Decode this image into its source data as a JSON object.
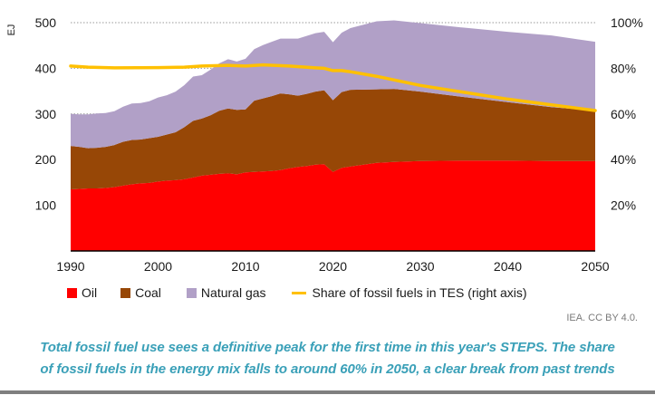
{
  "chart_data": {
    "type": "area",
    "stacked": true,
    "x": [
      1990,
      1991,
      1992,
      1993,
      1994,
      1995,
      1996,
      1997,
      1998,
      1999,
      2000,
      2001,
      2002,
      2003,
      2004,
      2005,
      2006,
      2007,
      2008,
      2009,
      2010,
      2011,
      2012,
      2013,
      2014,
      2015,
      2016,
      2017,
      2018,
      2019,
      2020,
      2021,
      2022,
      2025,
      2027,
      2030,
      2035,
      2040,
      2045,
      2050
    ],
    "series": [
      {
        "name": "Oil",
        "color": "#ff0000",
        "values": [
          135,
          136,
          137,
          137,
          138,
          140,
          143,
          146,
          148,
          149,
          152,
          154,
          155,
          157,
          161,
          165,
          167,
          169,
          170,
          168,
          172,
          173,
          174,
          175,
          177,
          181,
          184,
          186,
          189,
          190,
          173,
          182,
          185,
          193,
          195,
          197,
          198,
          198,
          197,
          197
        ]
      },
      {
        "name": "Coal",
        "color": "#974706",
        "values": [
          95,
          92,
          88,
          89,
          90,
          92,
          96,
          97,
          96,
          98,
          98,
          101,
          105,
          114,
          124,
          125,
          130,
          138,
          142,
          141,
          138,
          156,
          160,
          164,
          168,
          162,
          156,
          158,
          160,
          162,
          157,
          166,
          168,
          161,
          160,
          152,
          139,
          128,
          118,
          110
        ]
      },
      {
        "name": "Natural gas",
        "color": "#b1a0c7",
        "values": [
          70,
          71,
          74,
          75,
          74,
          74,
          77,
          80,
          80,
          81,
          86,
          86,
          89,
          92,
          97,
          95,
          100,
          104,
          108,
          106,
          111,
          113,
          117,
          119,
          120,
          122,
          125,
          127,
          128,
          128,
          127,
          130,
          135,
          149,
          150,
          150,
          152,
          154,
          157,
          151
        ]
      }
    ],
    "line_series": {
      "name": "Share of fossil fuels in TES (right axis)",
      "color": "#ffc000",
      "axis": "right",
      "x": [
        1990,
        1992,
        1995,
        2000,
        2003,
        2005,
        2008,
        2010,
        2012,
        2015,
        2018,
        2019,
        2020,
        2021,
        2022,
        2025,
        2030,
        2035,
        2040,
        2045,
        2050
      ],
      "values": [
        81.0,
        80.5,
        80.2,
        80.3,
        80.5,
        81.0,
        81.3,
        81.0,
        81.5,
        81.0,
        80.2,
        80.0,
        79.0,
        79.0,
        78.5,
        76.5,
        72.5,
        69.5,
        66.5,
        64.0,
        61.5
      ]
    },
    "xlabel": "",
    "ylabel": "EJ",
    "ylim": [
      0,
      500
    ],
    "y2lim": [
      0,
      100
    ],
    "xlim": [
      1990,
      2050
    ],
    "x_ticks": [
      "1990",
      "2000",
      "2010",
      "2020",
      "2030",
      "2040",
      "2050"
    ],
    "y_ticks": [
      "100",
      "200",
      "300",
      "400",
      "500"
    ],
    "y2_ticks": [
      "20%",
      "40%",
      "60%",
      "80%",
      "100%"
    ],
    "grid": "dotted horizontal at 300, 400, 500",
    "legend_position": "bottom",
    "legend": [
      "Oil",
      "Coal",
      "Natural gas",
      "Share of fossil fuels in TES (right axis)"
    ]
  },
  "source": "IEA. CC BY 4.0.",
  "caption": {
    "line1": "Total fossil fuel use sees a definitive peak for the first time in this year's STEPS. The share",
    "line2": "of fossil fuels in the energy mix falls to around 60% in 2050, a clear break from past trends"
  }
}
